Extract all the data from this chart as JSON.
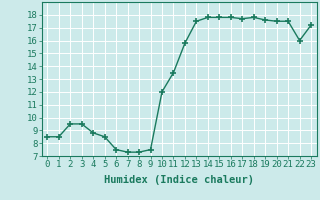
{
  "x": [
    0,
    1,
    2,
    3,
    4,
    5,
    6,
    7,
    8,
    9,
    10,
    11,
    12,
    13,
    14,
    15,
    16,
    17,
    18,
    19,
    20,
    21,
    22,
    23
  ],
  "y": [
    8.5,
    8.5,
    9.5,
    9.5,
    8.8,
    8.5,
    7.5,
    7.3,
    7.3,
    7.5,
    12.0,
    13.5,
    15.8,
    17.5,
    17.8,
    17.8,
    17.8,
    17.7,
    17.8,
    17.6,
    17.5,
    17.5,
    16.0,
    17.2
  ],
  "line_color": "#1a7a5e",
  "marker": "+",
  "marker_size": 4,
  "bg_color": "#cceaea",
  "grid_color": "#b0d8d8",
  "xlabel": "Humidex (Indice chaleur)",
  "xlim": [
    -0.5,
    23.5
  ],
  "ylim": [
    7,
    19
  ],
  "yticks": [
    7,
    8,
    9,
    10,
    11,
    12,
    13,
    14,
    15,
    16,
    17,
    18
  ],
  "xticks": [
    0,
    1,
    2,
    3,
    4,
    5,
    6,
    7,
    8,
    9,
    10,
    11,
    12,
    13,
    14,
    15,
    16,
    17,
    18,
    19,
    20,
    21,
    22,
    23
  ],
  "tick_color": "#1a7a5e",
  "label_color": "#1a7a5e",
  "font_size": 6.5,
  "xlabel_fontsize": 7.5,
  "line_width": 1.0,
  "marker_color": "#1a7a5e"
}
